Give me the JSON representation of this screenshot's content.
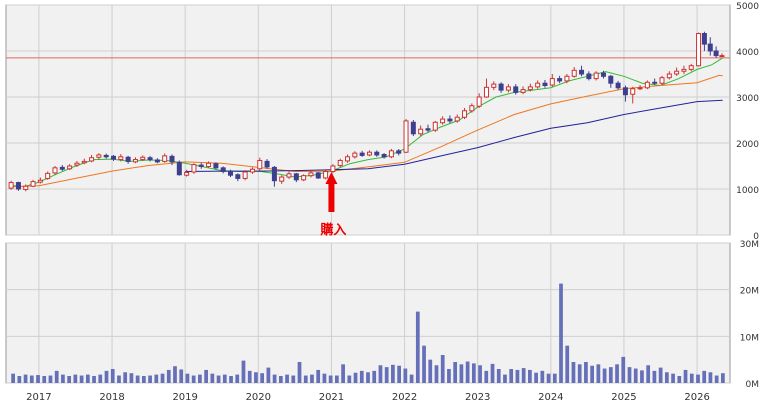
{
  "chart_data": [
    {
      "type": "candlestick",
      "title": "",
      "x_ticks": [
        "2017",
        "2018",
        "2019",
        "2020",
        "2021",
        "2022",
        "2023",
        "2024",
        "2025",
        "2026"
      ],
      "y_ticks": [
        "0",
        "1000",
        "2000",
        "3000",
        "4000",
        "5000"
      ],
      "ylim": [
        0,
        5000
      ],
      "reference_line": 3850,
      "annotation": {
        "label": "購入",
        "date": 2021.0,
        "color": "#ee0000"
      },
      "colors": {
        "up": "#cc3333",
        "down": "#3f3f8f",
        "ma_short": "#33bb33",
        "ma_mid": "#ee7722",
        "ma_long": "#222299",
        "reference": "#e06666"
      },
      "series": [
        {
          "key": "ma_short",
          "points": [
            [
              2016.6,
              1080
            ],
            [
              2016.8,
              1050
            ],
            [
              2017.0,
              1150
            ],
            [
              2017.25,
              1330
            ],
            [
              2017.5,
              1500
            ],
            [
              2017.75,
              1640
            ],
            [
              2018.0,
              1650
            ],
            [
              2018.25,
              1600
            ],
            [
              2018.5,
              1630
            ],
            [
              2018.75,
              1620
            ],
            [
              2019.0,
              1560
            ],
            [
              2019.25,
              1480
            ],
            [
              2019.5,
              1400
            ],
            [
              2019.75,
              1380
            ],
            [
              2020.0,
              1390
            ],
            [
              2020.25,
              1330
            ],
            [
              2020.5,
              1260
            ],
            [
              2020.75,
              1300
            ],
            [
              2021.0,
              1390
            ],
            [
              2021.25,
              1550
            ],
            [
              2021.5,
              1640
            ],
            [
              2021.75,
              1700
            ],
            [
              2022.0,
              1870
            ],
            [
              2022.25,
              2180
            ],
            [
              2022.5,
              2350
            ],
            [
              2022.75,
              2500
            ],
            [
              2023.0,
              2780
            ],
            [
              2023.25,
              3000
            ],
            [
              2023.5,
              3100
            ],
            [
              2023.75,
              3150
            ],
            [
              2024.0,
              3200
            ],
            [
              2024.25,
              3350
            ],
            [
              2024.5,
              3450
            ],
            [
              2024.75,
              3550
            ],
            [
              2025.0,
              3450
            ],
            [
              2025.25,
              3300
            ],
            [
              2025.5,
              3250
            ],
            [
              2025.75,
              3400
            ],
            [
              2026.0,
              3600
            ],
            [
              2026.2,
              3700
            ],
            [
              2026.35,
              3850
            ]
          ]
        },
        {
          "key": "ma_mid",
          "points": [
            [
              2016.6,
              1050
            ],
            [
              2017.0,
              1070
            ],
            [
              2017.5,
              1230
            ],
            [
              2018.0,
              1390
            ],
            [
              2018.5,
              1510
            ],
            [
              2019.0,
              1590
            ],
            [
              2019.5,
              1560
            ],
            [
              2020.0,
              1470
            ],
            [
              2020.5,
              1380
            ],
            [
              2021.0,
              1390
            ],
            [
              2021.5,
              1480
            ],
            [
              2022.0,
              1580
            ],
            [
              2022.5,
              1920
            ],
            [
              2023.0,
              2280
            ],
            [
              2023.5,
              2620
            ],
            [
              2024.0,
              2850
            ],
            [
              2024.5,
              3020
            ],
            [
              2025.0,
              3180
            ],
            [
              2025.5,
              3250
            ],
            [
              2026.0,
              3310
            ],
            [
              2026.3,
              3470
            ],
            [
              2026.35,
              3460
            ]
          ]
        },
        {
          "key": "ma_long",
          "points": [
            [
              2019.0,
              1380
            ],
            [
              2019.5,
              1390
            ],
            [
              2020.0,
              1390
            ],
            [
              2020.5,
              1400
            ],
            [
              2021.0,
              1420
            ],
            [
              2021.5,
              1440
            ],
            [
              2022.0,
              1540
            ],
            [
              2022.5,
              1720
            ],
            [
              2023.0,
              1900
            ],
            [
              2023.5,
              2120
            ],
            [
              2024.0,
              2320
            ],
            [
              2024.5,
              2440
            ],
            [
              2025.0,
              2620
            ],
            [
              2025.5,
              2760
            ],
            [
              2026.0,
              2900
            ],
            [
              2026.35,
              2930
            ]
          ]
        }
      ],
      "candles_key": [
        [
          2016.62,
          1020,
          1140,
          1180,
          980
        ],
        [
          2016.72,
          1140,
          1000,
          1160,
          960
        ],
        [
          2016.82,
          990,
          1060,
          1100,
          950
        ],
        [
          2016.92,
          1060,
          1160,
          1200,
          1040
        ],
        [
          2017.02,
          1150,
          1190,
          1250,
          1120
        ],
        [
          2017.12,
          1230,
          1340,
          1380,
          1200
        ],
        [
          2017.22,
          1350,
          1460,
          1500,
          1310
        ],
        [
          2017.32,
          1470,
          1430,
          1520,
          1390
        ],
        [
          2017.42,
          1440,
          1500,
          1540,
          1410
        ],
        [
          2017.52,
          1520,
          1560,
          1610,
          1480
        ],
        [
          2017.62,
          1570,
          1600,
          1660,
          1540
        ],
        [
          2017.72,
          1610,
          1680,
          1740,
          1580
        ],
        [
          2017.82,
          1690,
          1740,
          1780,
          1640
        ],
        [
          2017.92,
          1730,
          1700,
          1770,
          1660
        ],
        [
          2018.02,
          1710,
          1650,
          1740,
          1610
        ],
        [
          2018.12,
          1640,
          1700,
          1760,
          1600
        ],
        [
          2018.22,
          1690,
          1600,
          1720,
          1550
        ],
        [
          2018.32,
          1590,
          1640,
          1690,
          1560
        ],
        [
          2018.42,
          1640,
          1690,
          1730,
          1610
        ],
        [
          2018.52,
          1680,
          1640,
          1720,
          1600
        ],
        [
          2018.62,
          1630,
          1590,
          1670,
          1560
        ],
        [
          2018.72,
          1600,
          1720,
          1770,
          1570
        ],
        [
          2018.82,
          1710,
          1590,
          1750,
          1520
        ],
        [
          2018.92,
          1580,
          1310,
          1620,
          1290
        ],
        [
          2019.02,
          1300,
          1360,
          1420,
          1270
        ],
        [
          2019.12,
          1370,
          1530,
          1560,
          1330
        ],
        [
          2019.22,
          1520,
          1490,
          1570,
          1440
        ],
        [
          2019.32,
          1490,
          1560,
          1600,
          1460
        ],
        [
          2019.42,
          1550,
          1460,
          1580,
          1430
        ],
        [
          2019.52,
          1460,
          1380,
          1490,
          1340
        ],
        [
          2019.62,
          1380,
          1300,
          1420,
          1260
        ],
        [
          2019.72,
          1310,
          1230,
          1340,
          1170
        ],
        [
          2019.82,
          1230,
          1370,
          1410,
          1190
        ],
        [
          2019.92,
          1370,
          1430,
          1470,
          1330
        ],
        [
          2020.02,
          1440,
          1620,
          1680,
          1400
        ],
        [
          2020.12,
          1600,
          1480,
          1650,
          1440
        ],
        [
          2020.22,
          1470,
          1180,
          1500,
          1050
        ],
        [
          2020.32,
          1170,
          1260,
          1300,
          1110
        ],
        [
          2020.42,
          1260,
          1330,
          1380,
          1220
        ],
        [
          2020.52,
          1330,
          1200,
          1350,
          1150
        ],
        [
          2020.62,
          1200,
          1290,
          1320,
          1170
        ],
        [
          2020.72,
          1290,
          1350,
          1400,
          1250
        ],
        [
          2020.82,
          1350,
          1240,
          1370,
          1220
        ],
        [
          2020.92,
          1240,
          1380,
          1430,
          1210
        ],
        [
          2021.02,
          1380,
          1500,
          1540,
          1340
        ],
        [
          2021.12,
          1510,
          1620,
          1660,
          1470
        ],
        [
          2021.22,
          1610,
          1700,
          1750,
          1570
        ],
        [
          2021.32,
          1700,
          1780,
          1820,
          1660
        ],
        [
          2021.42,
          1780,
          1730,
          1830,
          1700
        ],
        [
          2021.52,
          1740,
          1800,
          1840,
          1710
        ],
        [
          2021.62,
          1800,
          1740,
          1840,
          1700
        ],
        [
          2021.72,
          1750,
          1700,
          1780,
          1660
        ],
        [
          2021.82,
          1700,
          1830,
          1870,
          1670
        ],
        [
          2021.92,
          1830,
          1780,
          1870,
          1730
        ],
        [
          2022.02,
          1800,
          2480,
          2520,
          1780
        ],
        [
          2022.12,
          2450,
          2200,
          2500,
          2150
        ],
        [
          2022.22,
          2200,
          2300,
          2380,
          2150
        ],
        [
          2022.32,
          2310,
          2280,
          2400,
          2230
        ],
        [
          2022.42,
          2280,
          2450,
          2480,
          2240
        ],
        [
          2022.52,
          2440,
          2520,
          2580,
          2400
        ],
        [
          2022.62,
          2520,
          2480,
          2600,
          2430
        ],
        [
          2022.72,
          2480,
          2560,
          2620,
          2440
        ],
        [
          2022.82,
          2560,
          2700,
          2760,
          2520
        ],
        [
          2022.92,
          2700,
          2810,
          2860,
          2660
        ],
        [
          2023.02,
          2800,
          3000,
          3080,
          2760
        ],
        [
          2023.12,
          3000,
          3210,
          3400,
          2980
        ],
        [
          2023.22,
          3210,
          3280,
          3340,
          3150
        ],
        [
          2023.32,
          3280,
          3150,
          3320,
          3090
        ],
        [
          2023.42,
          3150,
          3220,
          3280,
          3100
        ],
        [
          2023.52,
          3220,
          3100,
          3280,
          3050
        ],
        [
          2023.62,
          3100,
          3160,
          3230,
          3060
        ],
        [
          2023.72,
          3160,
          3220,
          3290,
          3120
        ],
        [
          2023.82,
          3220,
          3300,
          3360,
          3180
        ],
        [
          2023.92,
          3300,
          3250,
          3370,
          3200
        ],
        [
          2024.02,
          3260,
          3400,
          3500,
          3220
        ],
        [
          2024.12,
          3400,
          3350,
          3460,
          3300
        ],
        [
          2024.22,
          3350,
          3450,
          3500,
          3300
        ],
        [
          2024.32,
          3450,
          3580,
          3650,
          3420
        ],
        [
          2024.42,
          3580,
          3500,
          3680,
          3450
        ],
        [
          2024.52,
          3500,
          3400,
          3560,
          3360
        ],
        [
          2024.62,
          3400,
          3520,
          3560,
          3360
        ],
        [
          2024.72,
          3520,
          3450,
          3570,
          3400
        ],
        [
          2024.82,
          3450,
          3300,
          3480,
          3200
        ],
        [
          2024.92,
          3300,
          3200,
          3350,
          3160
        ],
        [
          2025.02,
          3200,
          3050,
          3250,
          2900
        ],
        [
          2025.12,
          3060,
          3180,
          3220,
          2860
        ],
        [
          2025.22,
          3180,
          3200,
          3260,
          3150
        ],
        [
          2025.32,
          3200,
          3320,
          3360,
          3170
        ],
        [
          2025.42,
          3320,
          3300,
          3400,
          3260
        ],
        [
          2025.52,
          3300,
          3420,
          3460,
          3260
        ],
        [
          2025.62,
          3420,
          3500,
          3560,
          3380
        ],
        [
          2025.72,
          3500,
          3560,
          3640,
          3460
        ],
        [
          2025.82,
          3560,
          3600,
          3680,
          3500
        ],
        [
          2025.92,
          3600,
          3680,
          3720,
          3560
        ],
        [
          2026.02,
          3680,
          4380,
          4400,
          3660
        ],
        [
          2026.1,
          4380,
          4150,
          4420,
          4000
        ],
        [
          2026.18,
          4150,
          4000,
          4300,
          3900
        ],
        [
          2026.26,
          4000,
          3900,
          4100,
          3850
        ],
        [
          2026.34,
          3900,
          3900,
          3950,
          3880
        ]
      ]
    },
    {
      "type": "bar",
      "title": "",
      "x_ticks": [
        "2017",
        "2018",
        "2019",
        "2020",
        "2021",
        "2022",
        "2023",
        "2024",
        "2025",
        "2026"
      ],
      "y_ticks": [
        "0M",
        "10M",
        "20M",
        "30M"
      ],
      "ylim": [
        0,
        30
      ],
      "unit": "M",
      "color": "#6670b8",
      "values": [
        2.0,
        1.5,
        1.8,
        1.6,
        1.7,
        1.5,
        1.6,
        2.6,
        1.8,
        1.5,
        1.8,
        1.6,
        1.8,
        1.5,
        1.8,
        2.6,
        3.0,
        1.6,
        2.3,
        2.1,
        1.6,
        1.5,
        1.6,
        1.8,
        2.0,
        2.8,
        3.6,
        2.9,
        2.0,
        1.6,
        1.8,
        2.8,
        2.0,
        1.6,
        1.8,
        1.5,
        1.8,
        4.8,
        2.6,
        2.3,
        2.1,
        3.3,
        1.8,
        1.5,
        1.8,
        1.6,
        4.5,
        1.6,
        1.8,
        2.8,
        2.0,
        1.6,
        1.6,
        4.0,
        1.6,
        2.2,
        2.6,
        2.3,
        2.6,
        3.8,
        3.4,
        3.9,
        3.7,
        3.1,
        1.8,
        15.3,
        8.0,
        5.0,
        3.8,
        6.0,
        3.0,
        4.5,
        4.0,
        4.6,
        4.2,
        3.8,
        2.6,
        4.1,
        3.0,
        1.8,
        3.0,
        2.8,
        3.2,
        2.8,
        2.2,
        2.6,
        2.0,
        2.0,
        21.3,
        8.0,
        4.5,
        4.0,
        4.5,
        3.7,
        4.0,
        3.1,
        3.4,
        4.0,
        5.6,
        3.4,
        3.1,
        2.7,
        3.8,
        2.6,
        3.3,
        2.3,
        2.0,
        1.5,
        2.8,
        2.0,
        1.8,
        2.6,
        2.3,
        1.6,
        2.1
      ]
    }
  ]
}
